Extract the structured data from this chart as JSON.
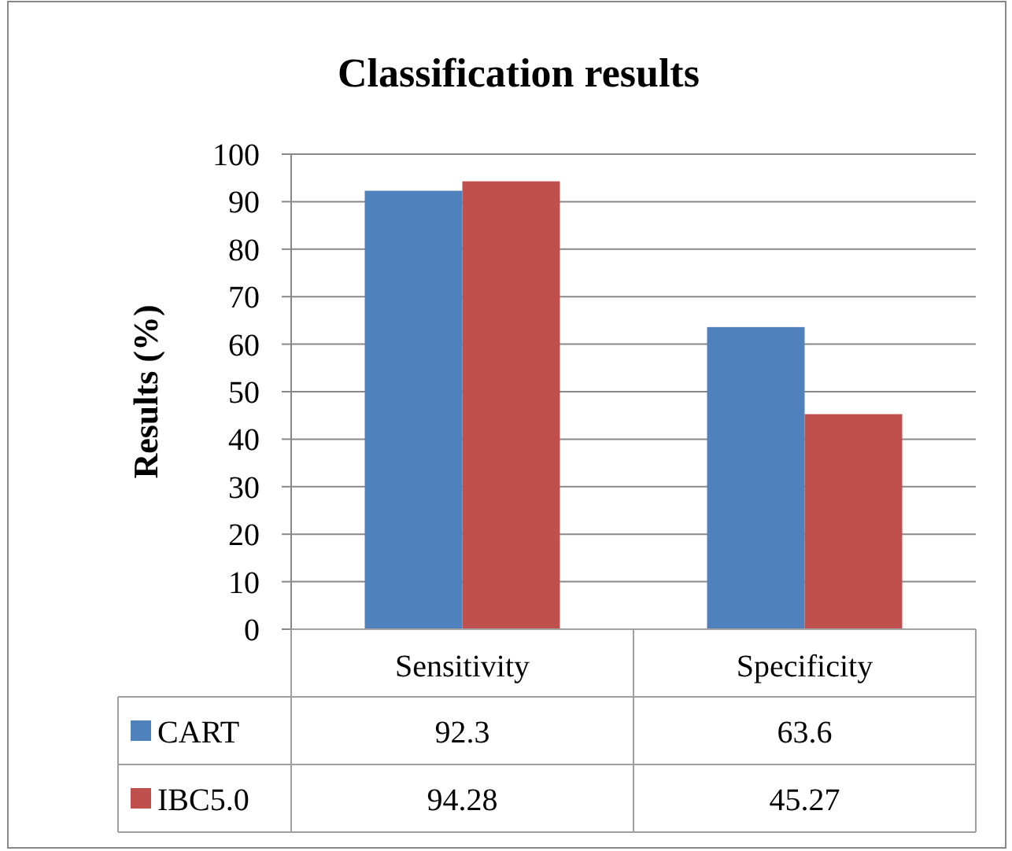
{
  "chart_data": {
    "type": "bar",
    "title": "Classification results",
    "ylabel": "Results (%)",
    "categories": [
      "Sensitivity",
      "Specificity"
    ],
    "series": [
      {
        "name": "CART",
        "color": "#4f81bd",
        "values": [
          92.3,
          63.6
        ]
      },
      {
        "name": "IBC5.0",
        "color": "#c0504d",
        "values": [
          94.28,
          45.27
        ]
      }
    ],
    "ylim": [
      0,
      100
    ],
    "yticks": [
      0,
      10,
      20,
      30,
      40,
      50,
      60,
      70,
      80,
      90,
      100
    ],
    "grid": "y",
    "legend": "bottom",
    "data_labels": true
  }
}
